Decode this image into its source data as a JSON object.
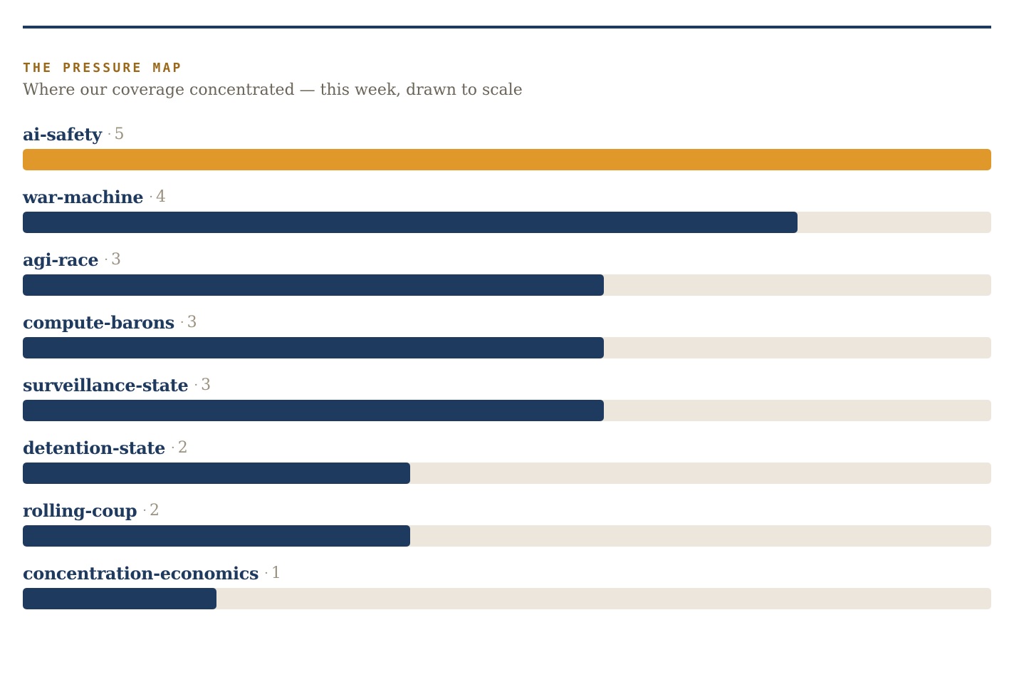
{
  "header": {
    "kicker": "THE PRESSURE MAP",
    "subtitle": "Where our coverage concentrated — this week, drawn to scale"
  },
  "colors": {
    "accent": "#e0982b",
    "bar": "#1f3a5f",
    "track": "#ede6dc",
    "rule": "#1f3a5f"
  },
  "chart_data": {
    "type": "bar",
    "orientation": "horizontal",
    "title": "THE PRESSURE MAP",
    "subtitle": "Where our coverage concentrated — this week, drawn to scale",
    "separator": "·",
    "xlim": [
      0,
      5
    ],
    "grid": false,
    "highlighted_category": "ai-safety",
    "categories": [
      "ai-safety",
      "war-machine",
      "agi-race",
      "compute-barons",
      "surveillance-state",
      "detention-state",
      "rolling-coup",
      "concentration-economics"
    ],
    "values": [
      5,
      4,
      3,
      3,
      3,
      2,
      2,
      1
    ]
  }
}
